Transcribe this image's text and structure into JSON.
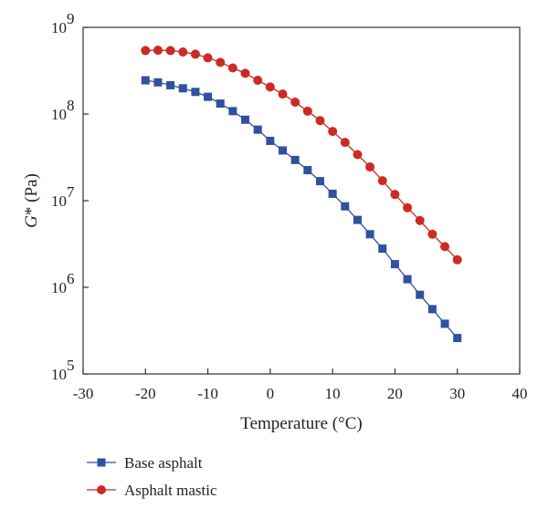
{
  "chart_data": {
    "type": "line",
    "xlabel": "Temperature (°C)",
    "ylabel": "G* (Pa)",
    "xlim": [
      -30,
      40
    ],
    "ylim": [
      100000,
      1000000000
    ],
    "y_scale": "log",
    "x_ticks": [
      "-30",
      "-20",
      "-10",
      "0",
      "10",
      "20",
      "30",
      "40"
    ],
    "y_ticks": [
      {
        "base": "10",
        "exp": "5"
      },
      {
        "base": "10",
        "exp": "6"
      },
      {
        "base": "10",
        "exp": "7"
      },
      {
        "base": "10",
        "exp": "8"
      },
      {
        "base": "10",
        "exp": "9"
      }
    ],
    "grid": false,
    "legend_position": "below",
    "x": [
      -20,
      -18,
      -16,
      -14,
      -12,
      -10,
      -8,
      -6,
      -4,
      -2,
      0,
      2,
      4,
      6,
      8,
      10,
      12,
      14,
      16,
      18,
      20,
      22,
      24,
      26,
      28,
      30
    ],
    "series": [
      {
        "name": "Base asphalt",
        "color": "#3050a0",
        "marker": "square",
        "values": [
          245000000,
          232000000,
          215000000,
          198000000,
          180000000,
          158000000,
          132000000,
          108000000,
          86000000,
          66000000,
          49000000,
          38000000,
          29500000,
          22500000,
          16800000,
          12000000,
          8600000,
          6000000,
          4100000,
          2800000,
          1850000,
          1240000,
          820000,
          560000,
          380000,
          260000
        ]
      },
      {
        "name": "Asphalt mastic",
        "color": "#cc2a22",
        "marker": "circle",
        "values": [
          540000000,
          545000000,
          540000000,
          520000000,
          490000000,
          445000000,
          395000000,
          340000000,
          295000000,
          245000000,
          205000000,
          170000000,
          137000000,
          108000000,
          84000000,
          63000000,
          47000000,
          34000000,
          24500000,
          17000000,
          11800000,
          8300000,
          5900000,
          4100000,
          2950000,
          2080000
        ]
      }
    ]
  }
}
